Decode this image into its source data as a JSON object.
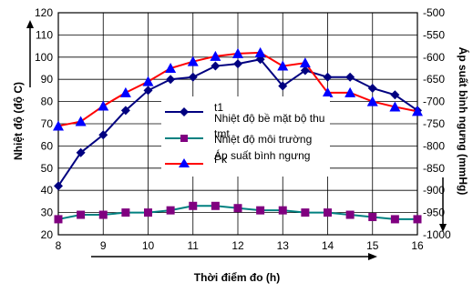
{
  "chart_data": {
    "type": "line",
    "x": [
      8,
      8.5,
      9,
      9.5,
      10,
      10.5,
      11,
      11.5,
      12,
      12.5,
      13,
      13.5,
      14,
      14.5,
      15,
      15.5,
      16
    ],
    "xlabel": "Thời điểm đo (h)",
    "ylabel_left": "Nhiệt độ (độ C)",
    "ylabel_right": "Áp suất bình ngưng (mmHg)",
    "xlim": [
      8,
      16
    ],
    "ylim_left": [
      20,
      120
    ],
    "ylim_right": [
      -1000,
      -500
    ],
    "x_ticks": [
      "8",
      "9",
      "10",
      "11",
      "12",
      "13",
      "14",
      "15",
      "16"
    ],
    "y_left_ticks": [
      "20",
      "30",
      "40",
      "50",
      "60",
      "70",
      "80",
      "90",
      "100",
      "110",
      "120"
    ],
    "y_right_ticks": [
      "-500",
      "-550",
      "-600",
      "-650",
      "-700",
      "-750",
      "-800",
      "-850",
      "-900",
      "-950",
      "-1000"
    ],
    "grid": true,
    "series": [
      {
        "name": "t1",
        "description": "Nhiệt độ bề mặt bộ thu",
        "axis": "left",
        "color": "#000080",
        "marker": "diamond",
        "values": [
          42,
          57,
          65,
          76,
          85,
          90,
          91,
          96,
          97,
          99,
          87,
          94,
          91,
          91,
          86,
          83,
          76
        ]
      },
      {
        "name": "tmt",
        "description": "Nhiệt độ môi trường",
        "axis": "left",
        "color": "#008080",
        "marker_color": "#800080",
        "marker": "square",
        "values": [
          27,
          29,
          29,
          30,
          30,
          31,
          33,
          33,
          32,
          31,
          31,
          30,
          30,
          29,
          28,
          27,
          27
        ]
      },
      {
        "name": "Pk",
        "description": "Áp suất bình ngưng",
        "axis": "right",
        "color": "#ff0000",
        "marker_color": "#0000ff",
        "marker": "triangle",
        "values": [
          -755,
          -745,
          -710,
          -680,
          -655,
          -625,
          -610,
          -598,
          -592,
          -590,
          -620,
          -613,
          -680,
          -680,
          -700,
          -712,
          -722
        ]
      }
    ]
  }
}
